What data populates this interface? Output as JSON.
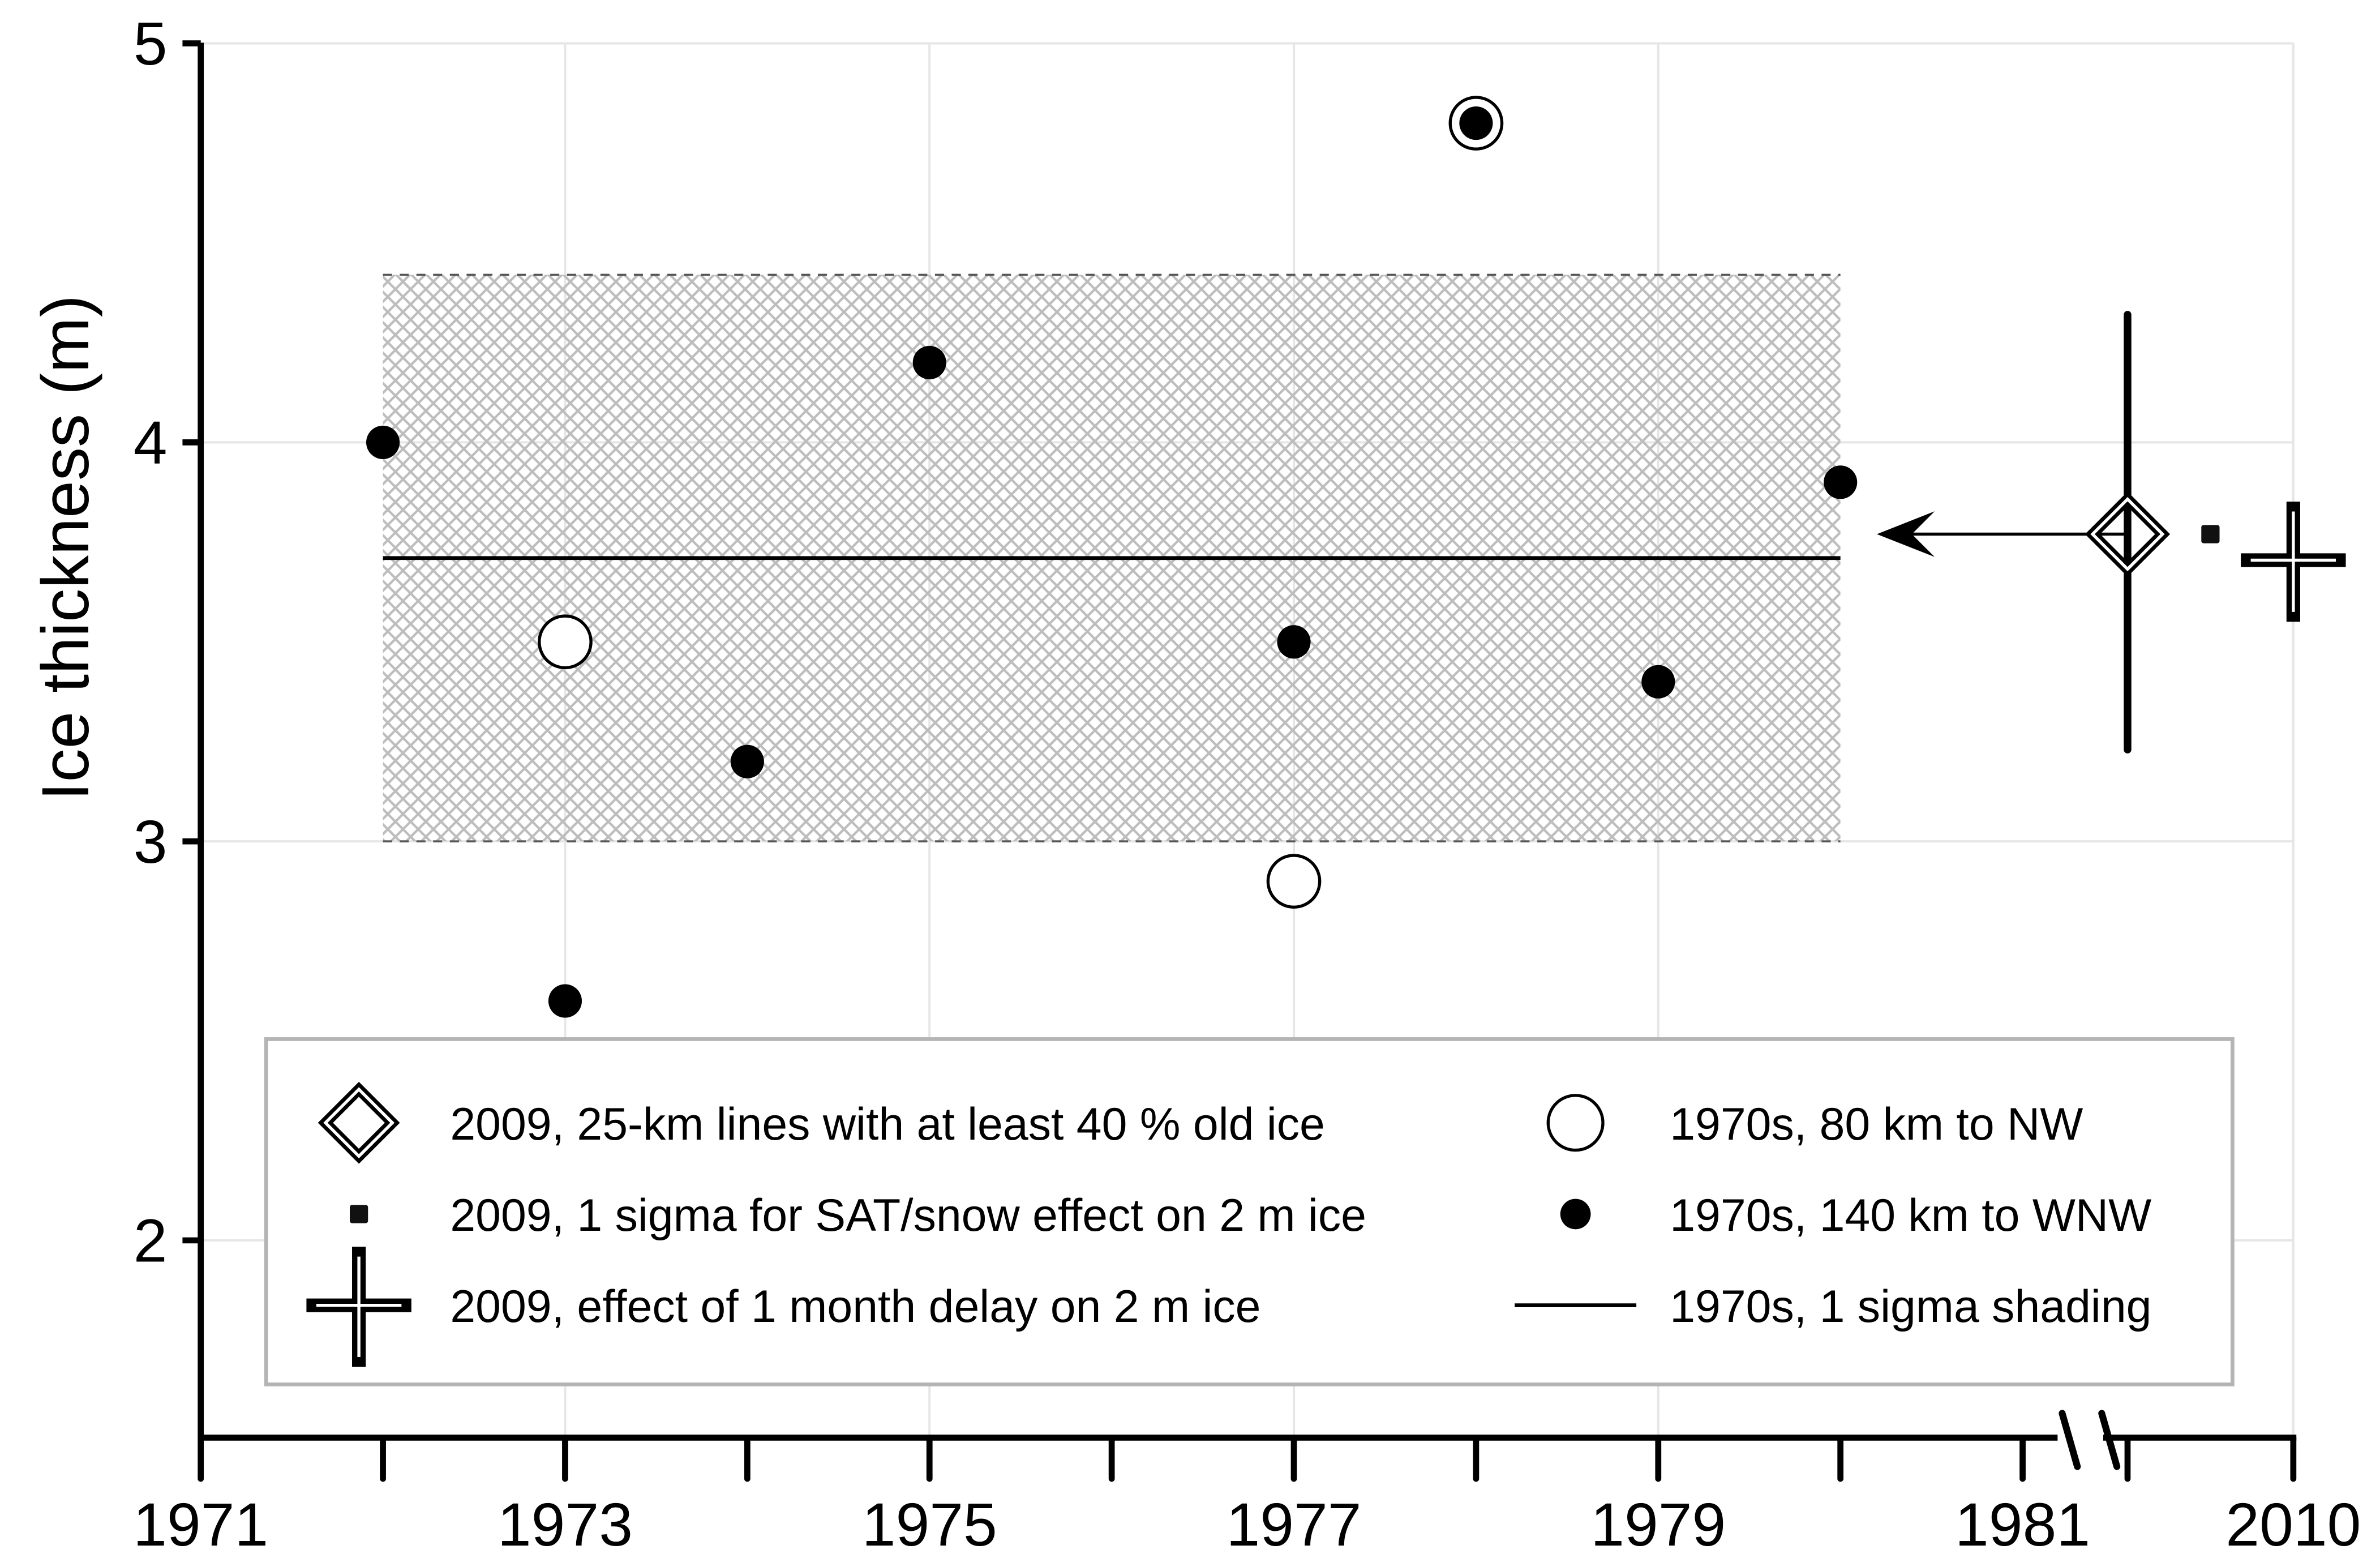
{
  "chart_data": {
    "type": "scatter",
    "title": "",
    "xlabel": "",
    "ylabel": "Ice thickness (m)",
    "ylim": [
      1.55,
      5
    ],
    "x_axis_broken": true,
    "x_ticks": [
      1971,
      1972,
      1973,
      1974,
      1975,
      1976,
      1977,
      1978,
      1979,
      1980,
      1981,
      2009,
      2010
    ],
    "x_tick_labels": [
      "1971",
      "1973",
      "1975",
      "1977",
      "1979",
      "1981",
      "2010"
    ],
    "y_tick_labels": [
      "2",
      "3",
      "4",
      "5"
    ],
    "grid": true,
    "legend_placement": "bottom",
    "series": [
      {
        "name": "1970s, 140 km to WNW",
        "marker": "filled-circle",
        "points": [
          [
            1972,
            4.0
          ],
          [
            1973,
            2.6
          ],
          [
            1974,
            3.2
          ],
          [
            1975,
            4.2
          ],
          [
            1977,
            3.5
          ],
          [
            1978,
            4.8
          ],
          [
            1979,
            3.4
          ],
          [
            1980,
            3.9
          ]
        ]
      },
      {
        "name": "1970s, 80 km to NW",
        "marker": "open-circle",
        "points": [
          [
            1973,
            3.5
          ],
          [
            1977,
            2.9
          ],
          [
            1978,
            4.8
          ]
        ]
      },
      {
        "name": "1970s, 1 sigma shading",
        "marker": "line",
        "mean": 3.71,
        "sigma_band": [
          3.0,
          4.42
        ],
        "x_range": [
          1972,
          1980
        ]
      },
      {
        "name": "2009, 25-km lines with at least 40 % old ice",
        "marker": "diamond",
        "points": [
          [
            2009,
            3.77
          ]
        ],
        "error_y": [
          3.23,
          4.32
        ]
      },
      {
        "name": "2009, 1 sigma for SAT/snow effect on 2 m ice",
        "marker": "square",
        "points": [
          [
            2009.5,
            3.77
          ]
        ]
      },
      {
        "name": "2009, effect of 1 month delay on 2 m ice",
        "marker": "cross",
        "points": [
          [
            2010,
            3.72
          ]
        ]
      }
    ],
    "arrow": {
      "from": [
        2010,
        3.77
      ],
      "to": [
        1980.2,
        3.77
      ]
    },
    "colors": {
      "marks": "#000000",
      "grid": "#e6e6e6",
      "shading": "#b0b0b0",
      "legend_border": "#b4b4b4"
    }
  }
}
